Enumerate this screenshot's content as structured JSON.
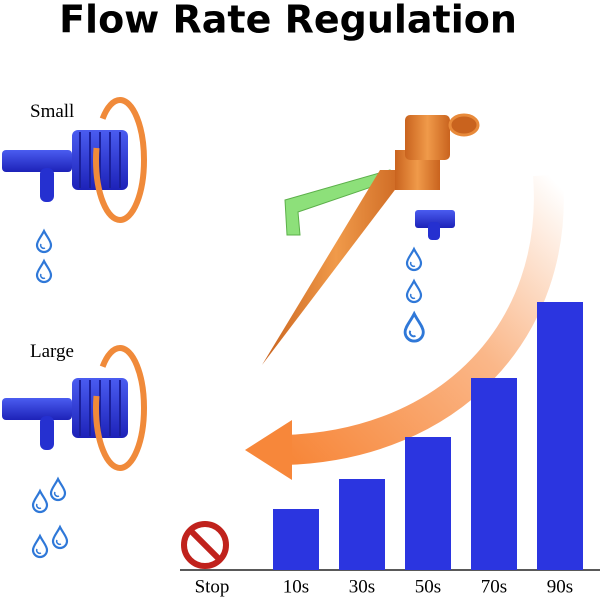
{
  "chart_data": {
    "type": "bar",
    "title": "Flow Rate Regulation",
    "annotations": [
      "Small",
      "Large"
    ],
    "categories": [
      "Stop",
      "10s",
      "30s",
      "50s",
      "70s",
      "90s"
    ],
    "values": [
      0,
      61,
      91,
      133,
      192,
      268
    ],
    "color": "#2b35e0",
    "ylim": [
      0,
      300
    ]
  }
}
